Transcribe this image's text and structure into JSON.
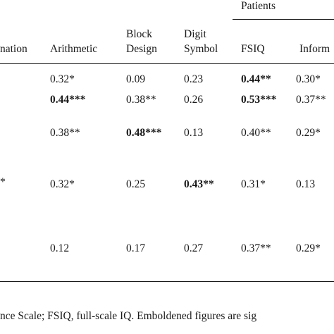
{
  "table": {
    "group_header": "Patients",
    "headers": {
      "information_partial": "nation",
      "arithmetic": "Arithmetic",
      "block_design": [
        "Block",
        "Design"
      ],
      "digit_symbol": [
        "Digit",
        "Symbol"
      ],
      "fsiq": "FSIQ",
      "information_right_partial": "Inform"
    },
    "row_label_fragments": [
      "*"
    ],
    "rows": [
      {
        "arithmetic": {
          "num": "0.32",
          "sig": "*"
        },
        "block_design": {
          "num": "0.09",
          "sig": ""
        },
        "digit_symbol": {
          "num": "0.23",
          "sig": ""
        },
        "fsiq": {
          "num": "0.44",
          "sig": "**"
        },
        "information": {
          "num": "0.30",
          "sig": "*"
        }
      },
      {
        "arithmetic": {
          "num": "0.44",
          "sig": "***"
        },
        "block_design": {
          "num": "0.38",
          "sig": "**"
        },
        "digit_symbol": {
          "num": "0.26",
          "sig": ""
        },
        "fsiq": {
          "num": "0.53",
          "sig": "***"
        },
        "information": {
          "num": "0.37",
          "sig": "**"
        }
      },
      {
        "arithmetic": {
          "num": "0.38",
          "sig": "**"
        },
        "block_design": {
          "num": "0.48",
          "sig": "***"
        },
        "digit_symbol": {
          "num": "0.13",
          "sig": ""
        },
        "fsiq": {
          "num": "0.40",
          "sig": "**"
        },
        "information": {
          "num": "0.29",
          "sig": "*"
        }
      },
      {
        "arithmetic": {
          "num": "0.32",
          "sig": "*"
        },
        "block_design": {
          "num": "0.25",
          "sig": ""
        },
        "digit_symbol": {
          "num": "0.43",
          "sig": "**"
        },
        "fsiq": {
          "num": "0.31",
          "sig": "*"
        },
        "information": {
          "num": "0.13",
          "sig": ""
        }
      },
      {
        "arithmetic": {
          "num": "0.12",
          "sig": ""
        },
        "block_design": {
          "num": "0.17",
          "sig": ""
        },
        "digit_symbol": {
          "num": "0.27",
          "sig": ""
        },
        "fsiq": {
          "num": "0.37",
          "sig": "**"
        },
        "information": {
          "num": "0.29",
          "sig": "*"
        }
      }
    ],
    "footnote": "nce Scale; FSIQ, full-scale IQ. Emboldened figures are sig"
  }
}
